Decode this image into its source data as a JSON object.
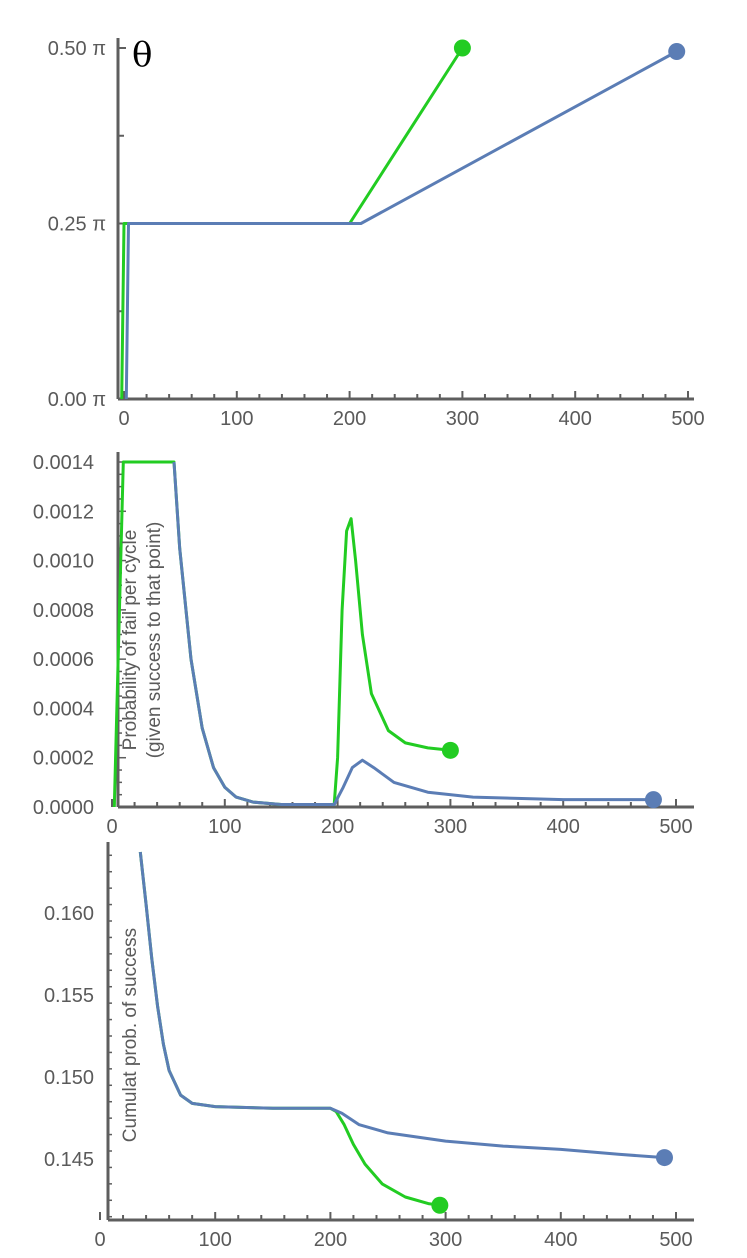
{
  "chart_data": [
    {
      "type": "line",
      "title": "",
      "annotation": "θ",
      "xlabel": "",
      "ylabel": "",
      "xlim": [
        -8,
        505
      ],
      "ylim": [
        0,
        0.5
      ],
      "x_ticks": [
        0,
        100,
        200,
        300,
        400,
        500
      ],
      "x_tick_labels": [
        "0",
        "100",
        "200",
        "300",
        "400",
        "500"
      ],
      "y_ticks": [
        0,
        0.25,
        0.5
      ],
      "y_tick_labels": [
        "0.00 π",
        "0.25 π",
        "0.50 π"
      ],
      "grid": false,
      "series": [
        {
          "color": "#22cc22",
          "points": [
            [
              -2,
              0
            ],
            [
              0,
              0.25
            ],
            [
              200,
              0.25
            ],
            [
              300,
              0.5
            ]
          ],
          "endpoint": [
            300,
            0.5
          ]
        },
        {
          "color": "#5b7db5",
          "points": [
            [
              2,
              0
            ],
            [
              4,
              0.25
            ],
            [
              210,
              0.25
            ],
            [
              490,
              0.495
            ]
          ],
          "endpoint": [
            490,
            0.495
          ]
        }
      ]
    },
    {
      "type": "line",
      "title": "",
      "xlabel": "",
      "ylabel": "Probability of fail per cycle\n(given success to that point)",
      "xlim": [
        0,
        505
      ],
      "ylim": [
        0,
        0.0014
      ],
      "x_ticks": [
        0,
        100,
        200,
        300,
        400,
        500
      ],
      "x_tick_labels": [
        "0",
        "100",
        "200",
        "300",
        "400",
        "500"
      ],
      "y_ticks": [
        0,
        0.0002,
        0.0004,
        0.0006,
        0.0008,
        0.001,
        0.0012,
        0.0014
      ],
      "y_tick_labels": [
        "0.0000",
        "0.0002",
        "0.0004",
        "0.0006",
        "0.0008",
        "0.0010",
        "0.0012",
        "0.0014"
      ],
      "grid": false,
      "series": [
        {
          "color": "#22cc22",
          "points": [
            [
              2,
              0
            ],
            [
              6,
              0.0007
            ],
            [
              10,
              0.0014
            ],
            [
              55,
              0.0014
            ],
            [
              60,
              0.00105
            ],
            [
              70,
              0.0006
            ],
            [
              80,
              0.00032
            ],
            [
              90,
              0.00016
            ],
            [
              100,
              8e-05
            ],
            [
              110,
              4e-05
            ],
            [
              125,
              2e-05
            ],
            [
              150,
              1e-05
            ],
            [
              197,
              1e-05
            ],
            [
              200,
              0.0002
            ],
            [
              204,
              0.0008
            ],
            [
              208,
              0.00112
            ],
            [
              212,
              0.00117
            ],
            [
              216,
              0.001
            ],
            [
              222,
              0.0007
            ],
            [
              230,
              0.00046
            ],
            [
              245,
              0.00031
            ],
            [
              260,
              0.00026
            ],
            [
              280,
              0.00024
            ],
            [
              300,
              0.00023
            ]
          ],
          "endpoint": [
            300,
            0.00023
          ]
        },
        {
          "color": "#5b7db5",
          "points": [
            [
              55,
              0.0014
            ],
            [
              60,
              0.00105
            ],
            [
              70,
              0.0006
            ],
            [
              80,
              0.00032
            ],
            [
              90,
              0.00016
            ],
            [
              100,
              8e-05
            ],
            [
              110,
              4e-05
            ],
            [
              125,
              2e-05
            ],
            [
              150,
              1e-05
            ],
            [
              197,
              1e-05
            ],
            [
              205,
              8e-05
            ],
            [
              213,
              0.00016
            ],
            [
              222,
              0.00019
            ],
            [
              232,
              0.00016
            ],
            [
              250,
              0.0001
            ],
            [
              280,
              6e-05
            ],
            [
              320,
              4e-05
            ],
            [
              400,
              3e-05
            ],
            [
              480,
              3e-05
            ]
          ],
          "endpoint": [
            480,
            3e-05
          ]
        }
      ]
    },
    {
      "type": "line",
      "title": "",
      "xlabel": "",
      "ylabel": "Cumulat prob. of success",
      "xlim": [
        0,
        505
      ],
      "ylim": [
        0.1413,
        0.1637
      ],
      "x_ticks": [
        0,
        100,
        200,
        300,
        400,
        500
      ],
      "x_tick_labels": [
        "0",
        "100",
        "200",
        "300",
        "400",
        "500"
      ],
      "y_ticks": [
        0.145,
        0.15,
        0.155,
        0.16
      ],
      "y_tick_labels": [
        "0.145",
        "0.150",
        "0.155",
        "0.160"
      ],
      "grid": false,
      "series": [
        {
          "color": "#22cc22",
          "points": [
            [
              35,
              0.1637
            ],
            [
              40,
              0.1605
            ],
            [
              45,
              0.1572
            ],
            [
              50,
              0.1543
            ],
            [
              55,
              0.152
            ],
            [
              60,
              0.1504
            ],
            [
              70,
              0.1489
            ],
            [
              80,
              0.1484
            ],
            [
              100,
              0.1482
            ],
            [
              150,
              0.1481
            ],
            [
              200,
              0.1481
            ],
            [
              205,
              0.1479
            ],
            [
              212,
              0.1471
            ],
            [
              220,
              0.1459
            ],
            [
              230,
              0.1447
            ],
            [
              245,
              0.1435
            ],
            [
              265,
              0.1427
            ],
            [
              285,
              0.1423
            ],
            [
              295,
              0.1422
            ]
          ],
          "endpoint": [
            295,
            0.1422
          ]
        },
        {
          "color": "#5b7db5",
          "points": [
            [
              35,
              0.1637
            ],
            [
              40,
              0.1605
            ],
            [
              45,
              0.1572
            ],
            [
              50,
              0.1543
            ],
            [
              55,
              0.152
            ],
            [
              60,
              0.1504
            ],
            [
              70,
              0.1489
            ],
            [
              80,
              0.1484
            ],
            [
              100,
              0.1482
            ],
            [
              150,
              0.1481
            ],
            [
              200,
              0.1481
            ],
            [
              210,
              0.1478
            ],
            [
              225,
              0.1471
            ],
            [
              250,
              0.1466
            ],
            [
              300,
              0.1461
            ],
            [
              350,
              0.1458
            ],
            [
              400,
              0.1456
            ],
            [
              450,
              0.1453
            ],
            [
              490,
              0.1451
            ]
          ],
          "endpoint": [
            490,
            0.1451
          ]
        }
      ]
    }
  ]
}
